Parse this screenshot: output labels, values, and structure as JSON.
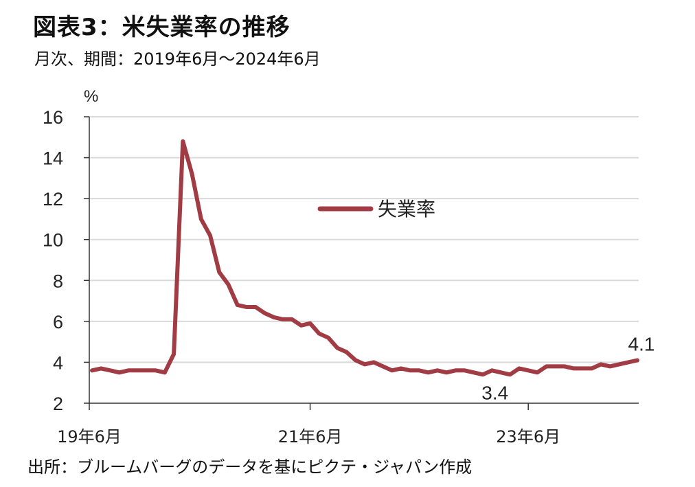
{
  "title": "図表3：米失業率の推移",
  "subtitle": "月次、期間：2019年6月～2024年6月",
  "source": "出所：ブルームバーグのデータを基にピクテ・ジャパン作成",
  "chart_data": {
    "type": "line",
    "ylabel": "%",
    "ylim": [
      2,
      16
    ],
    "yticks": [
      "2",
      "4",
      "6",
      "8",
      "10",
      "12",
      "14",
      "16"
    ],
    "xticks": [
      {
        "label": "19年6月",
        "index": 0
      },
      {
        "label": "21年6月",
        "index": 24
      },
      {
        "label": "23年6月",
        "index": 48
      }
    ],
    "grid": true,
    "legend_position": "center",
    "series": [
      {
        "name": "失業率",
        "color": "#a13c45",
        "values": [
          3.6,
          3.7,
          3.6,
          3.5,
          3.6,
          3.6,
          3.6,
          3.6,
          3.5,
          4.4,
          14.8,
          13.2,
          11.0,
          10.2,
          8.4,
          7.8,
          6.8,
          6.7,
          6.7,
          6.4,
          6.2,
          6.1,
          6.1,
          5.8,
          5.9,
          5.4,
          5.2,
          4.7,
          4.5,
          4.1,
          3.9,
          4.0,
          3.8,
          3.6,
          3.7,
          3.6,
          3.6,
          3.5,
          3.6,
          3.5,
          3.6,
          3.6,
          3.5,
          3.4,
          3.6,
          3.5,
          3.4,
          3.7,
          3.6,
          3.5,
          3.8,
          3.8,
          3.8,
          3.7,
          3.7,
          3.7,
          3.9,
          3.8,
          3.9,
          4.0,
          4.1
        ]
      }
    ],
    "annotations": [
      {
        "text": "3.4",
        "index": 46
      },
      {
        "text": "4.1",
        "index": 60
      }
    ]
  },
  "colors": {
    "line": "#a13c45",
    "grid": "#d9d9d9",
    "axis": "#333333"
  }
}
